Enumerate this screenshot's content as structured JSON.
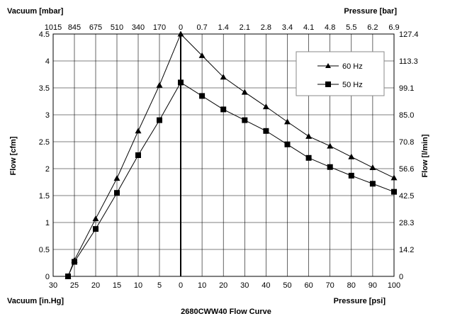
{
  "chart_data": {
    "type": "line",
    "title": "2680CWW40 Flow Curve",
    "top_left_label": "Vacuum [mbar]",
    "top_right_label": "Pressure [bar]",
    "bottom_left_label": "Vacuum [in.Hg]",
    "bottom_right_label": "Pressure [psi]",
    "ylabel_left": "Flow [cfm]",
    "ylabel_right": "Flow [l/min]",
    "ylim": [
      0,
      4.5
    ],
    "y_ticks": [
      "0",
      "0.5",
      "1",
      "1.5",
      "2",
      "2.5",
      "3",
      "3.5",
      "4",
      "4.5"
    ],
    "y2_ticks": [
      "0",
      "14.2",
      "28.3",
      "42.5",
      "56.6",
      "70.8",
      "85.0",
      "99.1",
      "113.3",
      "127.4"
    ],
    "x_vacuum_ticks": [
      "30",
      "25",
      "20",
      "15",
      "10",
      "5",
      "0"
    ],
    "x_pressure_ticks": [
      "0",
      "10",
      "20",
      "30",
      "40",
      "50",
      "60",
      "70",
      "80",
      "90",
      "100"
    ],
    "top_vacuum_ticks": [
      "1015",
      "845",
      "675",
      "510",
      "340",
      "170",
      "0"
    ],
    "top_pressure_ticks": [
      "0.7",
      "1.4",
      "2.1",
      "2.8",
      "3.4",
      "4.1",
      "4.8",
      "5.5",
      "6.2",
      "6.9"
    ],
    "grid": true,
    "legend_position": "top-right",
    "series": [
      {
        "name": "60 Hz",
        "marker": "triangle",
        "vacuum_points": [
          [
            26.5,
            0.0
          ],
          [
            25,
            0.3
          ],
          [
            20,
            1.07
          ],
          [
            15,
            1.82
          ],
          [
            10,
            2.7
          ],
          [
            5,
            3.55
          ],
          [
            0,
            4.5
          ]
        ],
        "pressure_points": [
          [
            0,
            4.5
          ],
          [
            10,
            4.1
          ],
          [
            20,
            3.7
          ],
          [
            30,
            3.42
          ],
          [
            40,
            3.15
          ],
          [
            50,
            2.87
          ],
          [
            60,
            2.6
          ],
          [
            70,
            2.42
          ],
          [
            80,
            2.22
          ],
          [
            90,
            2.02
          ],
          [
            100,
            1.83
          ]
        ]
      },
      {
        "name": "50 Hz",
        "marker": "square",
        "vacuum_points": [
          [
            26.5,
            0.0
          ],
          [
            25,
            0.27
          ],
          [
            20,
            0.88
          ],
          [
            15,
            1.55
          ],
          [
            10,
            2.25
          ],
          [
            5,
            2.9
          ],
          [
            0,
            3.6
          ]
        ],
        "pressure_points": [
          [
            0,
            3.6
          ],
          [
            10,
            3.35
          ],
          [
            20,
            3.1
          ],
          [
            30,
            2.9
          ],
          [
            40,
            2.7
          ],
          [
            50,
            2.45
          ],
          [
            60,
            2.2
          ],
          [
            70,
            2.03
          ],
          [
            80,
            1.87
          ],
          [
            90,
            1.72
          ],
          [
            100,
            1.57
          ]
        ]
      }
    ]
  }
}
